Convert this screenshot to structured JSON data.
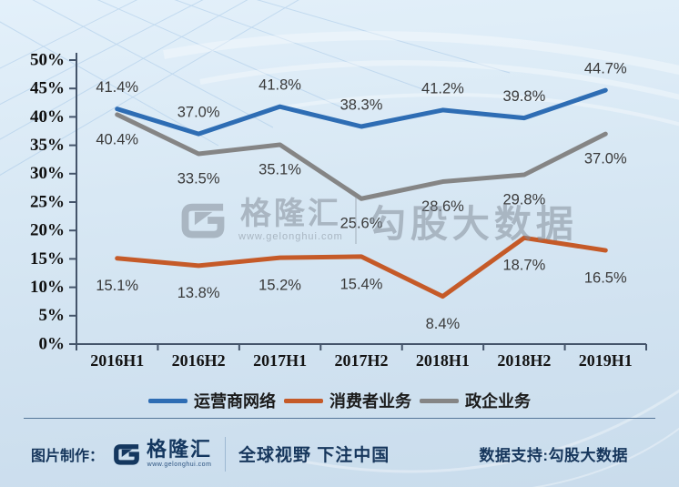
{
  "chart_data": {
    "type": "line",
    "title": "",
    "categories": [
      "2016H1",
      "2016H2",
      "2017H1",
      "2017H2",
      "2018H1",
      "2018H2",
      "2019H1"
    ],
    "series": [
      {
        "name": "运营商网络",
        "color": "#2E6DB4",
        "values": [
          41.4,
          37.0,
          41.8,
          38.3,
          41.2,
          39.8,
          44.7
        ],
        "label_position": "above"
      },
      {
        "name": "消费者业务",
        "color": "#C55A28",
        "values": [
          15.1,
          13.8,
          15.2,
          15.4,
          8.4,
          18.7,
          16.5
        ],
        "label_position": "below"
      },
      {
        "name": "政企业务",
        "color": "#858585",
        "values": [
          40.4,
          33.5,
          35.1,
          25.6,
          28.6,
          29.8,
          37.0
        ],
        "label_position": "below"
      }
    ],
    "ylim": [
      0,
      50
    ],
    "ytick_step": 5,
    "yticks": [
      "0%",
      "5%",
      "10%",
      "15%",
      "20%",
      "25%",
      "30%",
      "35%",
      "40%",
      "45%",
      "50%"
    ],
    "value_suffix": "%",
    "grid": false,
    "legend_position": "bottom",
    "axis_color": "#44546A"
  },
  "watermark": {
    "logo_name": "格隆汇",
    "logo_url": "www.gelonghui.com",
    "big_text": "勾股大数据"
  },
  "footer": {
    "made_by_label": "图片制作：",
    "logo_name": "格隆汇",
    "logo_url": "www.gelonghui.com",
    "slogan": "全球视野 下注中国",
    "data_support": "数据支持:勾股大数据"
  }
}
